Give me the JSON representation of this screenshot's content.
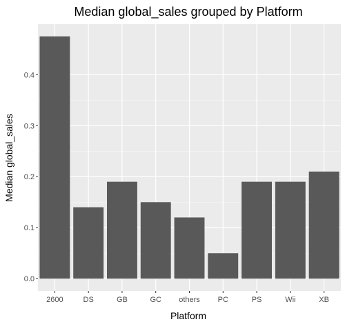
{
  "chart_data": {
    "type": "bar",
    "title": "Median global_sales grouped by Platform",
    "xlabel": "Platform",
    "ylabel": "Median global_sales",
    "categories": [
      "2600",
      "DS",
      "GB",
      "GC",
      "others",
      "PC",
      "PS",
      "Wii",
      "XB"
    ],
    "values": [
      0.475,
      0.14,
      0.19,
      0.15,
      0.12,
      0.05,
      0.19,
      0.19,
      0.21
    ],
    "ylim": [
      -0.024,
      0.499
    ],
    "yticks": [
      0.0,
      0.1,
      0.2,
      0.3,
      0.4
    ],
    "ytick_labels": [
      "0.0",
      "0.1",
      "0.2",
      "0.3",
      "0.4"
    ],
    "grid": true,
    "legend": "none",
    "colors": {
      "bar": "#595959",
      "panel_background": "#ebebeb",
      "grid_major": "#ffffff",
      "tick_mark": "#333333"
    }
  }
}
